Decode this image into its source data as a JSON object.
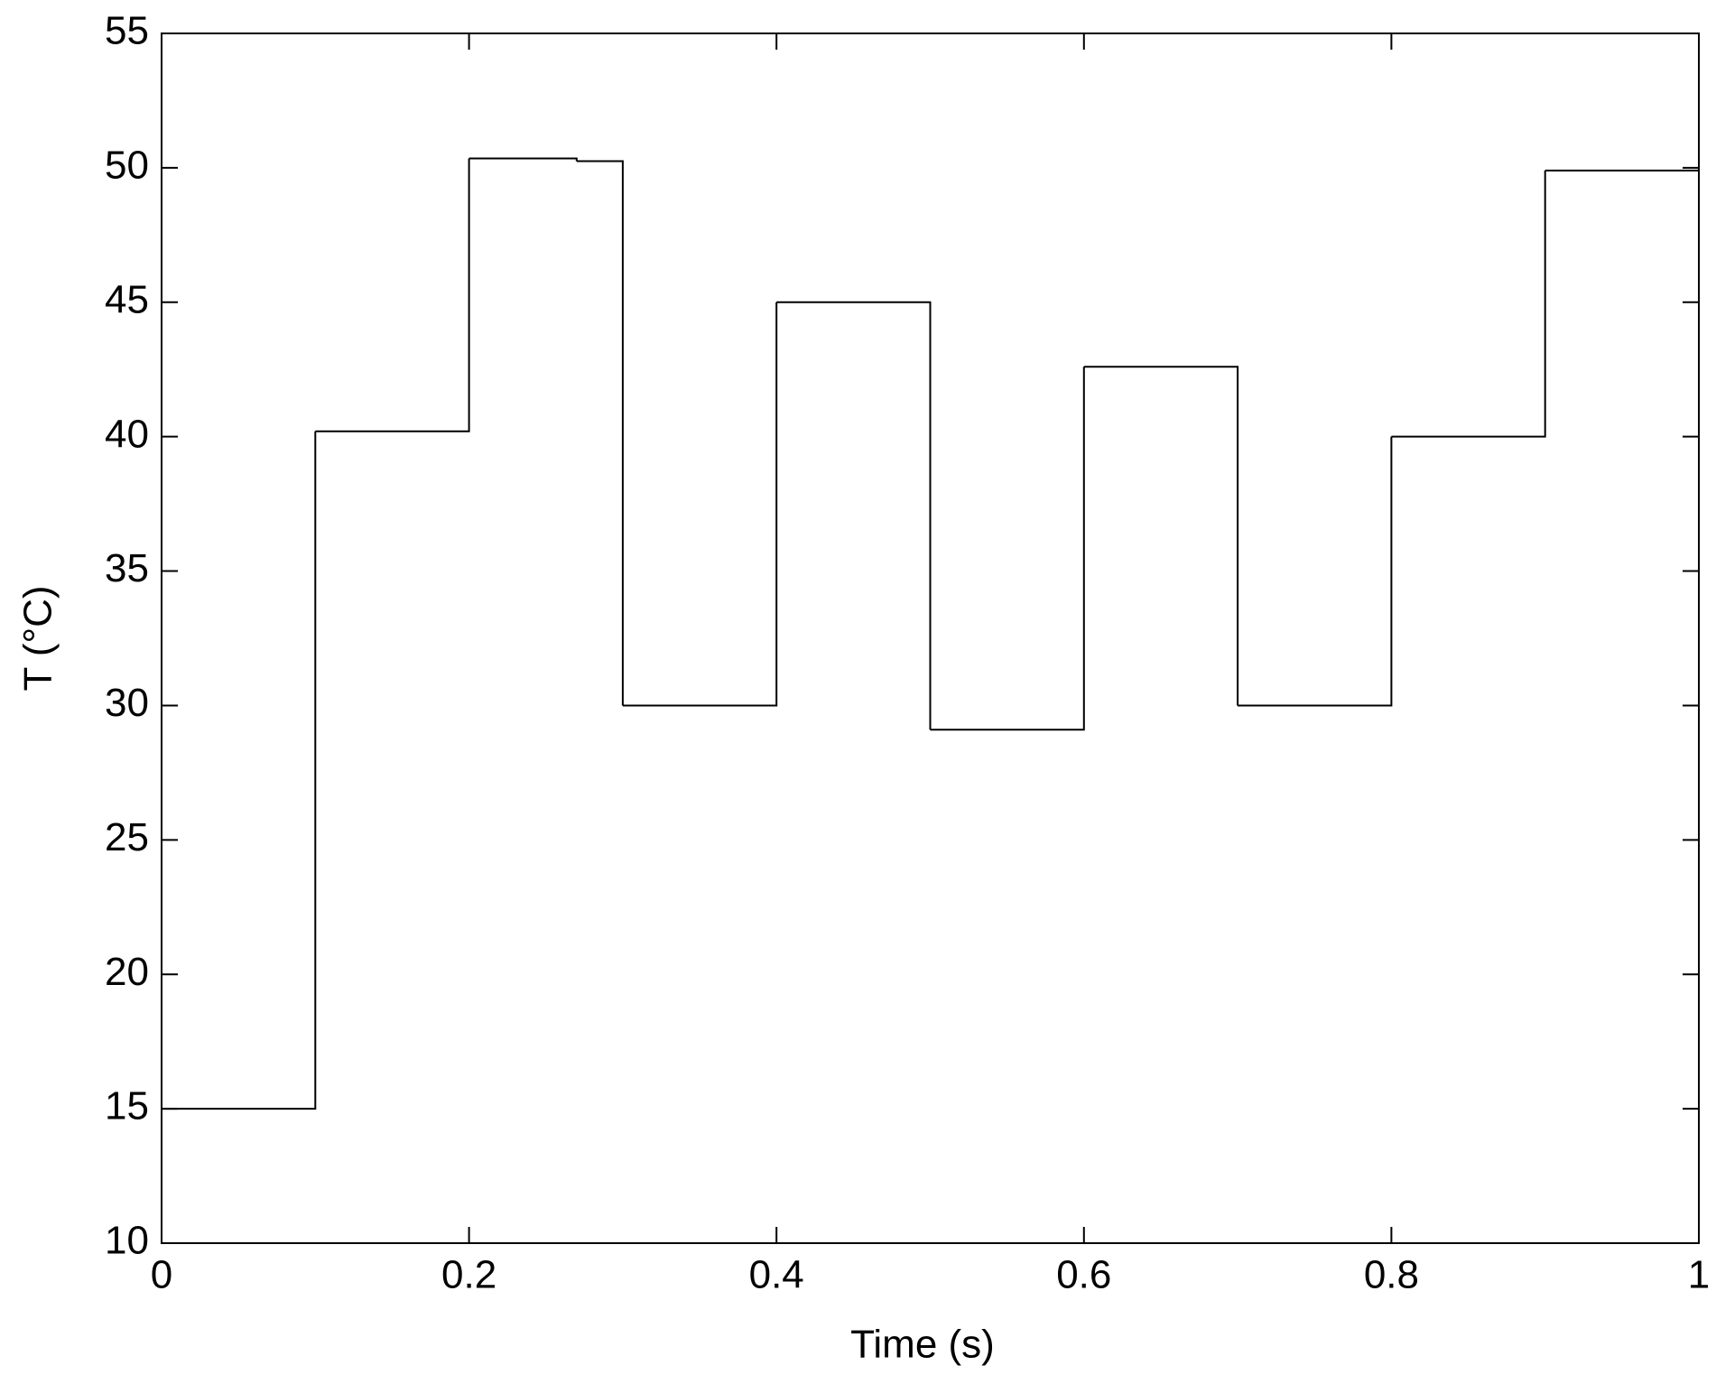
{
  "chart_data": {
    "type": "line",
    "step": "post",
    "x_label": "Time (s)",
    "y_label": "T (°C)",
    "x": [
      0,
      0.1,
      0.2,
      0.27,
      0.3,
      0.4,
      0.5,
      0.6,
      0.7,
      0.8,
      0.9,
      1
    ],
    "values": [
      15,
      40.2,
      50.35,
      50.25,
      30,
      45,
      29.1,
      42.6,
      30,
      40,
      49.9,
      49.9
    ],
    "color": "#000000",
    "xlim": [
      0,
      1
    ],
    "xticks": [
      0,
      0.2,
      0.4,
      0.6,
      0.8,
      1
    ],
    "ylim": [
      10,
      55
    ],
    "yticks": [
      10,
      15,
      20,
      25,
      30,
      35,
      40,
      45,
      50,
      55
    ],
    "grid": false
  }
}
